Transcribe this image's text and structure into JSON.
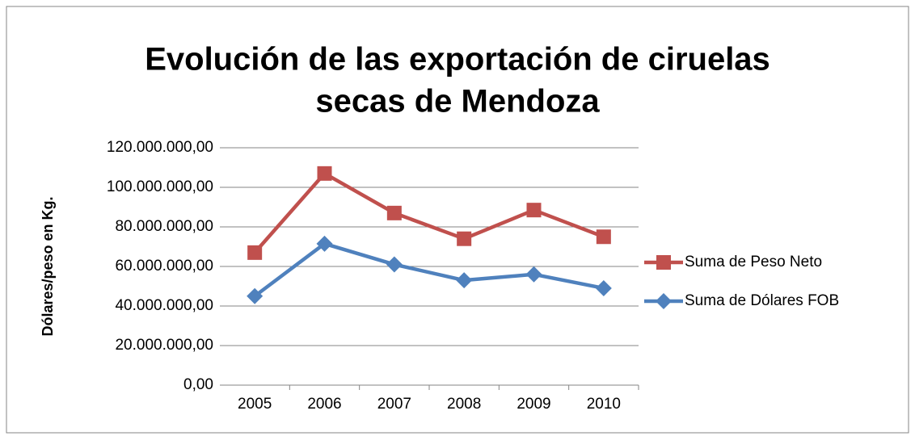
{
  "chart_data": {
    "type": "line",
    "title": [
      "Evolución de las exportación de ciruelas",
      "secas de Mendoza"
    ],
    "y_label": "Dólares/peso en Kg.",
    "categories": [
      "2005",
      "2006",
      "2007",
      "2008",
      "2009",
      "2010"
    ],
    "series": [
      {
        "name": "Suma de Peso Neto",
        "color": "#c0504d",
        "marker": "square",
        "values": [
          67000000,
          107000000,
          87000000,
          74000000,
          88500000,
          75000000
        ]
      },
      {
        "name": "Suma de Dólares FOB",
        "color": "#4f81bd",
        "marker": "diamond",
        "values": [
          45000000,
          71500000,
          61000000,
          53000000,
          56000000,
          49000000
        ]
      }
    ],
    "ylim": [
      0,
      120000000
    ],
    "yticks": [
      {
        "value": 0,
        "label": "0,00"
      },
      {
        "value": 20000000,
        "label": "20.000.000,00"
      },
      {
        "value": 40000000,
        "label": "40.000.000,00"
      },
      {
        "value": 60000000,
        "label": "60.000.000,00"
      },
      {
        "value": 80000000,
        "label": "80.000.000,00"
      },
      {
        "value": 100000000,
        "label": "100.000.000,00"
      },
      {
        "value": 120000000,
        "label": "120.000.000,00"
      }
    ],
    "grid": true,
    "legend": "right"
  }
}
